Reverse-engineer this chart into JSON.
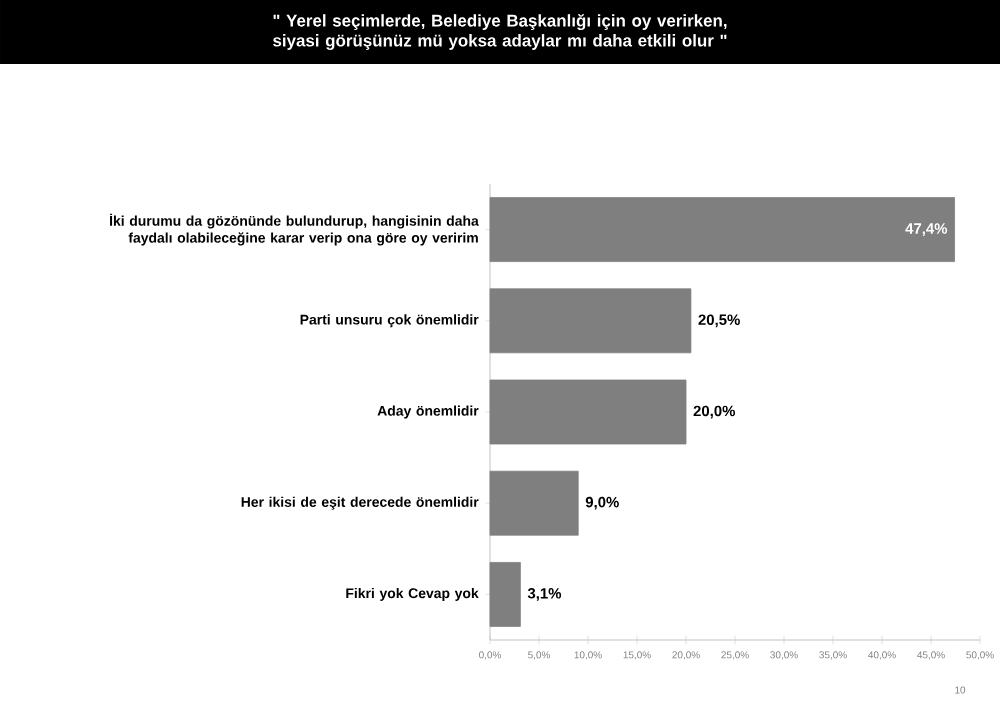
{
  "chart_data": {
    "type": "bar",
    "orientation": "horizontal",
    "title": "\" Yerel seçimlerde, Belediye Başkanlığı için oy verirken, siyasi görüşünüz mü yoksa adaylar mı daha etkili olur \"",
    "categories": [
      "İki durumu da gözönünde bulundurup, hangisinin daha faydalı olabileceğine karar verip ona göre oy veririm",
      "Parti unsuru çok önemlidir",
      "Aday önemlidir",
      "Her ikisi de eşit derecede önemlidir",
      "Fikri yok Cevap yok"
    ],
    "values": [
      47.4,
      20.5,
      20.0,
      9.0,
      3.1
    ],
    "value_labels": [
      "47,4%",
      "20,5%",
      "20,0%",
      "9,0%",
      "3,1%"
    ],
    "color": "#7f7f7f",
    "xlim": [
      0,
      50
    ],
    "xticks": [
      {
        "value": 0,
        "label": "0,0%"
      },
      {
        "value": 5,
        "label": "5,0%"
      },
      {
        "value": 10,
        "label": "10,0%"
      },
      {
        "value": 15,
        "label": "15,0%"
      },
      {
        "value": 20,
        "label": "20,0%"
      },
      {
        "value": 25,
        "label": "25,0%"
      },
      {
        "value": 30,
        "label": "30,0%"
      },
      {
        "value": 35,
        "label": "35,0%"
      },
      {
        "value": 40,
        "label": "40,0%"
      },
      {
        "value": 45,
        "label": "45,0%"
      },
      {
        "value": 50,
        "label": "50,0%"
      }
    ],
    "annotations": [
      "10"
    ]
  }
}
